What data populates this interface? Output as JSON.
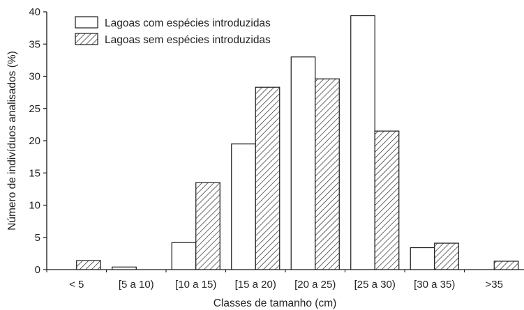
{
  "chart_data": {
    "type": "bar",
    "title": "",
    "xlabel": "Classes de tamanho (cm)",
    "ylabel": "Número de indivíduos analisados (%)",
    "ylim": [
      0,
      40
    ],
    "yticks": [
      0,
      5,
      10,
      15,
      20,
      25,
      30,
      35,
      40
    ],
    "categories": [
      "< 5",
      "[5 a 10)",
      "[10 a 15)",
      "[15 a 20)",
      "[20 a 25)",
      "[25 a 30)",
      "[30 a 35)",
      ">35"
    ],
    "series": [
      {
        "name": "Lagoas com espécies introduzidas",
        "fill": "open",
        "values": [
          0,
          0.4,
          4.2,
          19.5,
          33.0,
          39.4,
          3.4,
          0
        ]
      },
      {
        "name": "Lagoas sem espécies introduzidas",
        "fill": "hatched",
        "values": [
          1.4,
          0,
          13.5,
          28.3,
          29.6,
          21.5,
          4.1,
          1.3
        ]
      }
    ],
    "legend_position": "top-left",
    "grid": false
  },
  "colors": {
    "ink": "#1a1a1a",
    "background": "#ffffff"
  }
}
